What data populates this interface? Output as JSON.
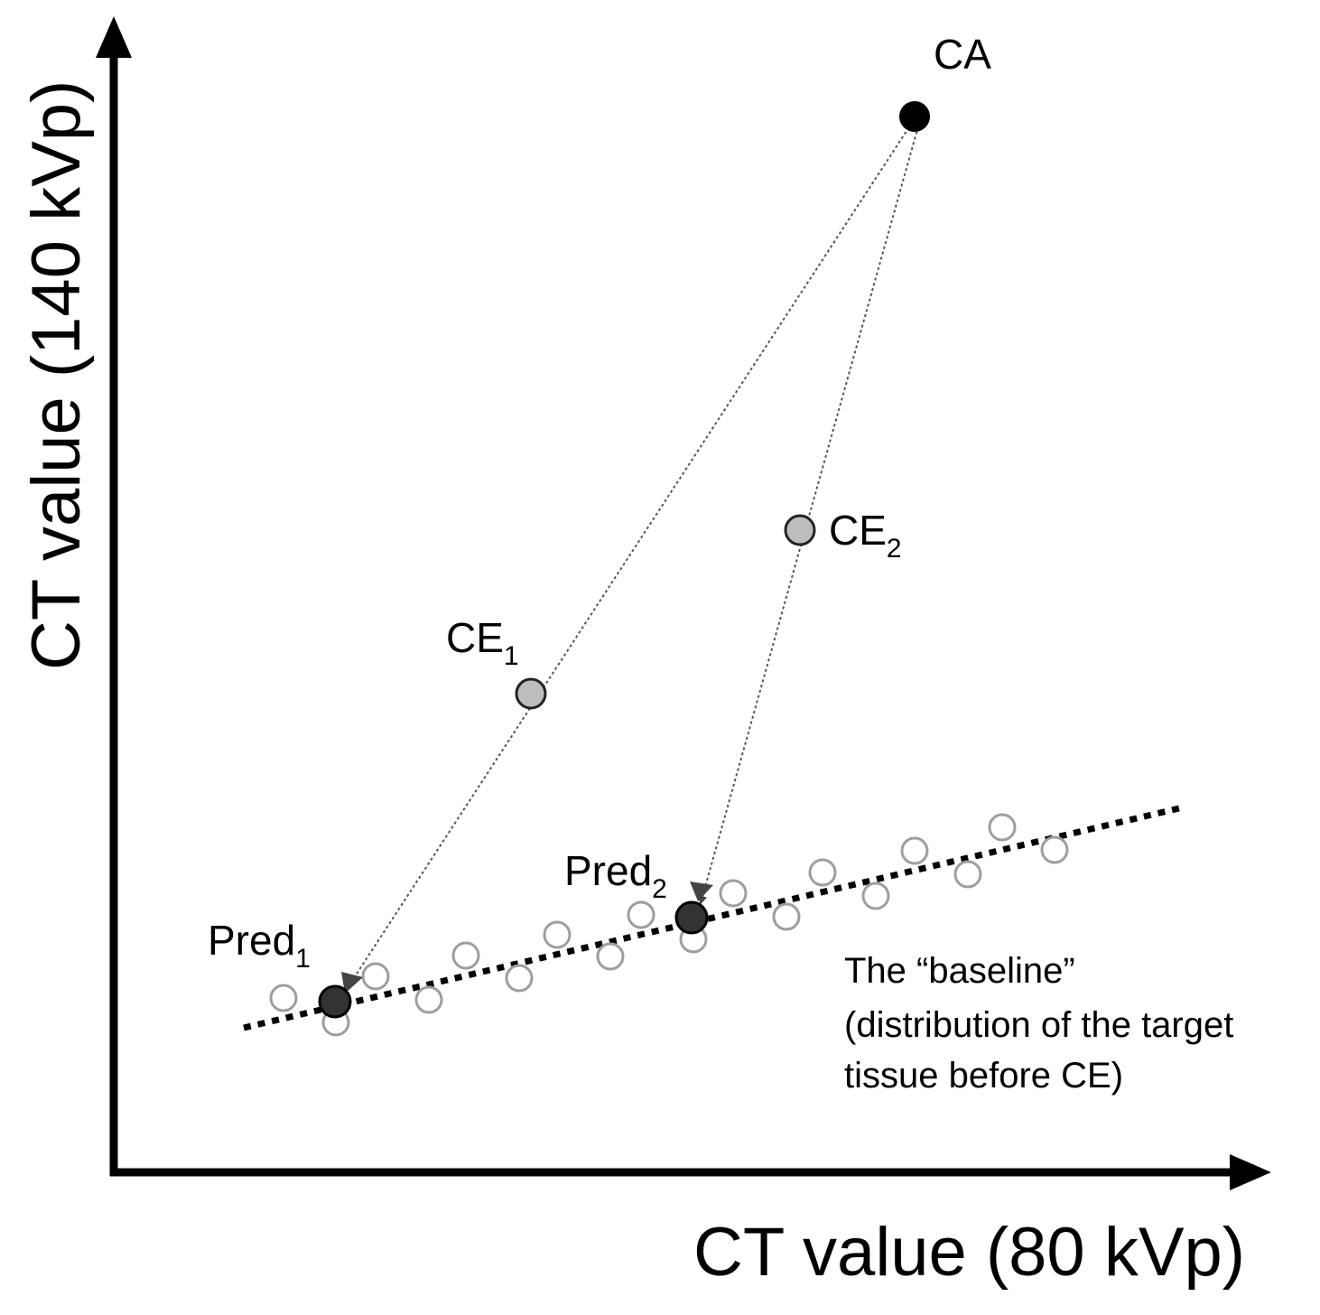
{
  "axes": {
    "x_label": "CT value (80 kVp)",
    "y_label": "CT value (140 kVp)"
  },
  "points": {
    "ca": {
      "label": "CA",
      "color": "#000000"
    },
    "ce1": {
      "label": "CE",
      "subscript": "1",
      "color": "#bdbdbd"
    },
    "ce2": {
      "label": "CE",
      "subscript": "2",
      "color": "#bdbdbd"
    },
    "pred1": {
      "label": "Pred",
      "subscript": "1",
      "color": "#333333"
    },
    "pred2": {
      "label": "Pred",
      "subscript": "2",
      "color": "#333333"
    }
  },
  "baseline": {
    "title": "The “baseline”",
    "description_line1": "(distribution of the target",
    "description_line2": "tissue before CE)",
    "sample_color": "#9e9e9e"
  }
}
